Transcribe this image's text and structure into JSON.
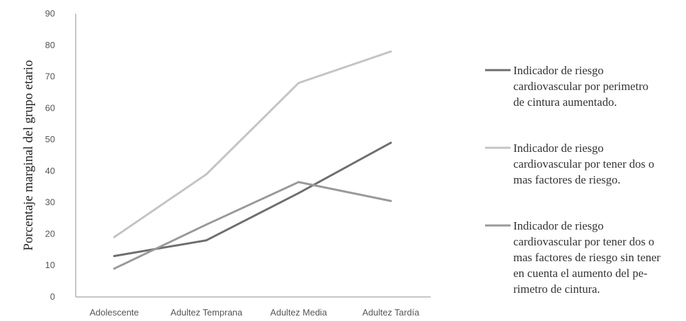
{
  "chart_data": {
    "type": "line",
    "title": "",
    "xlabel": "",
    "ylabel": "Porcentaje marginal del grupo etario",
    "categories": [
      "Adolescente",
      "Adultez Temprana",
      "Adultez Media",
      "Adultez Tardía"
    ],
    "ylim": [
      0,
      90
    ],
    "yticks": [
      0,
      10,
      20,
      30,
      40,
      50,
      60,
      70,
      80,
      90
    ],
    "grid": false,
    "legend_position": "right",
    "series": [
      {
        "name": "Indicador de riesgo cardiovascular por perimetro de cintura aumentado.",
        "legend_lines": [
          "Indicador de riesgo",
          "cardiovascular por perimetro",
          "de cintura aumentado."
        ],
        "color": "#6e6e6e",
        "values": [
          13,
          18,
          33,
          49
        ]
      },
      {
        "name": "Indicador de riesgo cardiovascular por tener dos o mas factores de riesgo.",
        "legend_lines": [
          "Indicador de riesgo",
          "cardiovascular por tener dos o",
          "mas factores de riesgo."
        ],
        "color": "#c4c4c4",
        "values": [
          19,
          39,
          68,
          78
        ]
      },
      {
        "name": "Indicador de riesgo cardiovascular por tener dos o mas factores de riesgo sin tener en cuenta el aumento del perimetro de cintura.",
        "legend_lines": [
          "Indicador de riesgo",
          "cardiovascular por tener dos o",
          "mas factores de riesgo sin tener",
          "en cuenta el aumento del pe-",
          "rimetro de cintura."
        ],
        "color": "#999999",
        "values": [
          9,
          23,
          36.5,
          30.5
        ]
      }
    ]
  }
}
